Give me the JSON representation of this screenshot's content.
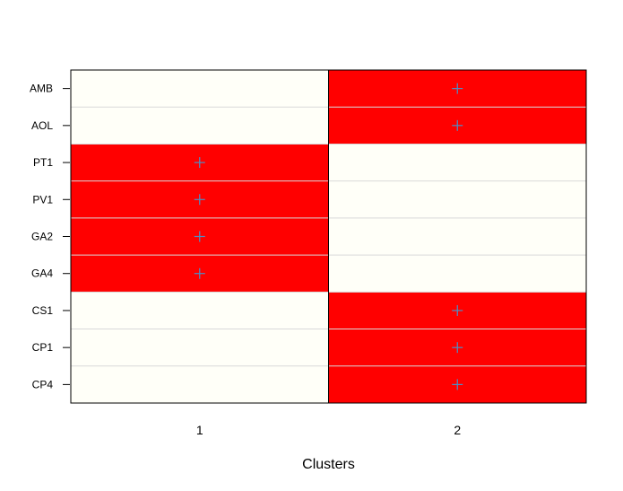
{
  "chart_data": {
    "type": "heatmap",
    "title": "",
    "xlabel": "Clusters",
    "ylabel": "",
    "columns": [
      "1",
      "2"
    ],
    "rows": [
      "AMB",
      "AOL",
      "PT1",
      "PV1",
      "GA2",
      "GA4",
      "CS1",
      "CP1",
      "CP4"
    ],
    "values": [
      [
        0,
        1
      ],
      [
        0,
        1
      ],
      [
        1,
        0
      ],
      [
        1,
        0
      ],
      [
        1,
        0
      ],
      [
        1,
        0
      ],
      [
        0,
        1
      ],
      [
        0,
        1
      ],
      [
        0,
        1
      ]
    ],
    "marker": "+",
    "grid": true,
    "colors": {
      "present": "#ff0000",
      "absent": "#fffff8",
      "marker": "#4a90c8",
      "gridline": "#d9d9d9",
      "border": "#000000"
    }
  }
}
